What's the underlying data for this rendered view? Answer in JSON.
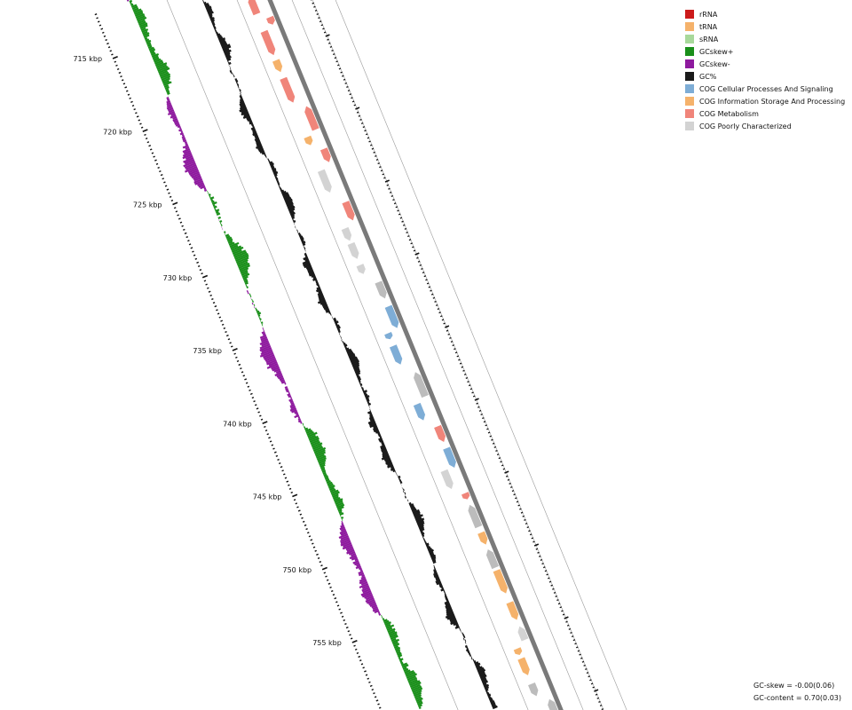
{
  "legend": [
    {
      "label": "rRNA",
      "color": "#cc1a1a"
    },
    {
      "label": "tRNA",
      "color": "#f5b26b"
    },
    {
      "label": "sRNA",
      "color": "#a8d99b"
    },
    {
      "label": "GCskew+",
      "color": "#1a8f1a"
    },
    {
      "label": "GCskew-",
      "color": "#8e1a9e"
    },
    {
      "label": "GC%",
      "color": "#1a1a1a"
    },
    {
      "label": "COG Cellular Processes And Signaling",
      "color": "#7eadd6"
    },
    {
      "label": "COG Information Storage And Processing",
      "color": "#f5b26b"
    },
    {
      "label": "COG Metabolism",
      "color": "#f0857a"
    },
    {
      "label": "COG Poorly Characterized",
      "color": "#d3d3d3"
    }
  ],
  "stats": {
    "gc_skew": "GC-skew = -0.00(0.06)",
    "gc_content": "GC-content = 0.70(0.03)"
  },
  "ticks": [
    {
      "label": "715 kbp",
      "kbp": 715
    },
    {
      "label": "720 kbp",
      "kbp": 720
    },
    {
      "label": "725 kbp",
      "kbp": 725
    },
    {
      "label": "730 kbp",
      "kbp": 730
    },
    {
      "label": "735 kbp",
      "kbp": 735
    },
    {
      "label": "740 kbp",
      "kbp": 740
    },
    {
      "label": "745 kbp",
      "kbp": 745
    },
    {
      "label": "750 kbp",
      "kbp": 750
    },
    {
      "label": "755 kbp",
      "kbp": 755
    }
  ],
  "colors": {
    "backbone": "#7a7a7a",
    "track_line": "#9a9a9a",
    "gc_skew_pos": "#1a8f1a",
    "gc_skew_neg": "#8e1a9e",
    "gc_content": "#1a1a1a",
    "cog_cellular": "#7eadd6",
    "cog_information": "#f5b26b",
    "cog_metabolism": "#f0857a",
    "cog_poorly": "#d3d3d3",
    "cog_other": "#bcbcbc"
  }
}
